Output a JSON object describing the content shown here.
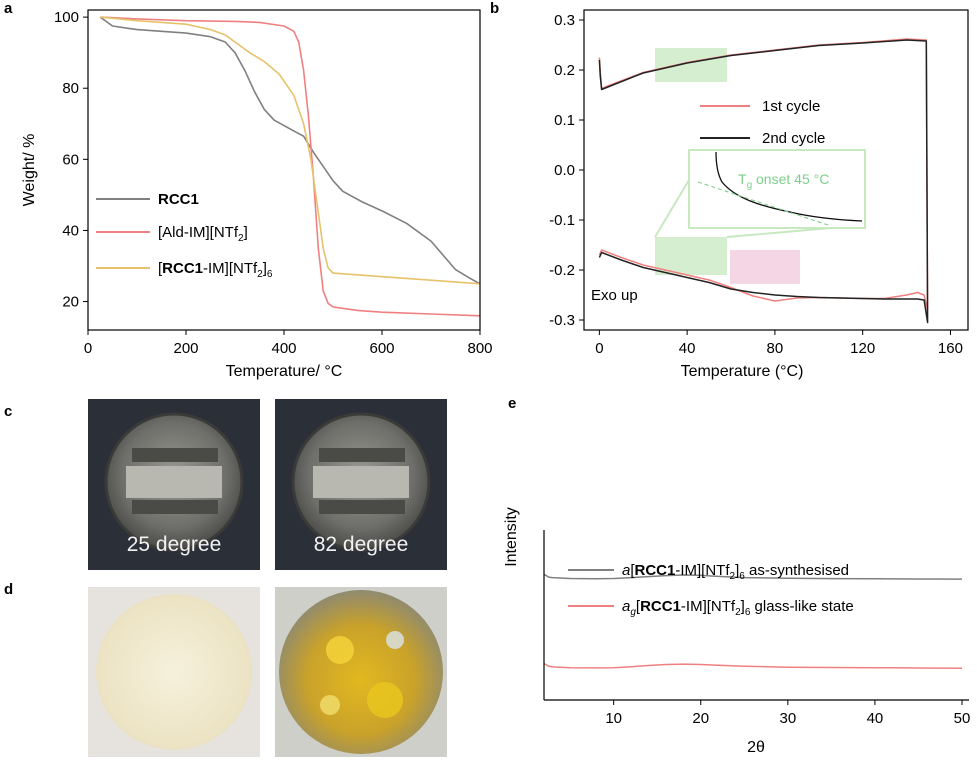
{
  "figure": {
    "panel_labels": [
      "a",
      "b",
      "c",
      "d",
      "e"
    ]
  },
  "chart_data": [
    {
      "panel": "a",
      "type": "line",
      "xlabel": "Temperature/ °C",
      "ylabel": "Weight/ %",
      "xlim": [
        0,
        800
      ],
      "ylim": [
        12,
        102
      ],
      "xticks": [
        0,
        200,
        400,
        600,
        800
      ],
      "yticks": [
        20,
        40,
        60,
        80,
        100
      ],
      "grid": false,
      "legend_position": "bottom-left",
      "series": [
        {
          "name": "RCC1",
          "legend_parts": [
            {
              "t": "RCC1",
              "bold": true
            }
          ],
          "color": "#808080",
          "x": [
            25,
            50,
            100,
            150,
            200,
            250,
            280,
            300,
            320,
            340,
            360,
            380,
            400,
            420,
            440,
            460,
            480,
            500,
            520,
            540,
            560,
            600,
            650,
            700,
            750,
            780,
            800
          ],
          "y": [
            100,
            97.5,
            96.5,
            96,
            95.5,
            94.5,
            93,
            90,
            85,
            79,
            74,
            71,
            69.5,
            68,
            66.5,
            62,
            58,
            54,
            51,
            49.5,
            48,
            45.5,
            42,
            37,
            29,
            26.5,
            25
          ]
        },
        {
          "name": "[Ald-IM][NTf2]",
          "legend_parts": [
            {
              "t": "[Ald-IM][NTf"
            },
            {
              "t": "2",
              "sub": true
            },
            {
              "t": "]"
            }
          ],
          "color": "#f08080",
          "x": [
            25,
            100,
            200,
            300,
            350,
            400,
            420,
            430,
            440,
            450,
            460,
            470,
            480,
            490,
            500,
            550,
            600,
            700,
            800
          ],
          "y": [
            100,
            99.5,
            99,
            98.8,
            98.5,
            97.5,
            96,
            93,
            85,
            72,
            55,
            35,
            23,
            19.5,
            18.5,
            17.5,
            17,
            16.5,
            16
          ]
        },
        {
          "name": "[RCC1-IM][NTf2]6",
          "legend_parts": [
            {
              "t": "["
            },
            {
              "t": "RCC1",
              "bold": true
            },
            {
              "t": "-IM][NTf"
            },
            {
              "t": "2",
              "sub": true
            },
            {
              "t": "]"
            },
            {
              "t": "6",
              "sub": true
            }
          ],
          "color": "#e6c36b",
          "x": [
            25,
            100,
            200,
            250,
            280,
            300,
            330,
            360,
            390,
            420,
            440,
            455,
            470,
            480,
            490,
            500,
            600,
            700,
            800
          ],
          "y": [
            100,
            99,
            98,
            96.5,
            95,
            93,
            90,
            87.5,
            84,
            78,
            70,
            60,
            45,
            35,
            29.5,
            28,
            27,
            26,
            25
          ]
        }
      ]
    },
    {
      "panel": "b",
      "type": "line",
      "xlabel": "Temperature (°C)",
      "xlim": [
        -7,
        168
      ],
      "ylim": [
        -0.32,
        0.32
      ],
      "xticks": [
        0,
        40,
        80,
        120,
        160
      ],
      "yticks": [
        -0.3,
        -0.2,
        -0.1,
        0.0,
        0.1,
        0.2,
        0.3
      ],
      "ytick_labels": [
        "-0.3",
        "-0.2",
        "-0.1",
        "0.0",
        "0.1",
        "0.2",
        "0.3"
      ],
      "grid": false,
      "legend_position": "center",
      "annotations": {
        "corner_text": "Exo up",
        "inset_label_parts": [
          {
            "t": "T"
          },
          {
            "t": "g",
            "sub": true
          },
          {
            "t": " onset 45 °C"
          }
        ]
      },
      "series": [
        {
          "name": "1st cycle",
          "color": "#f08080",
          "x": [
            0,
            1,
            10,
            20,
            30,
            40,
            50,
            60,
            70,
            80,
            90,
            100,
            110,
            120,
            130,
            140,
            145,
            148,
            149.6,
            149,
            140,
            120,
            100,
            80,
            60,
            40,
            20,
            5,
            1,
            0.4,
            0
          ],
          "y": [
            -0.17,
            -0.16,
            -0.175,
            -0.19,
            -0.2,
            -0.21,
            -0.22,
            -0.235,
            -0.252,
            -0.262,
            -0.256,
            -0.255,
            -0.256,
            -0.257,
            -0.257,
            -0.25,
            -0.245,
            -0.25,
            -0.28,
            0.26,
            0.262,
            0.255,
            0.25,
            0.24,
            0.23,
            0.215,
            0.195,
            0.17,
            0.163,
            0.2,
            0.225
          ]
        },
        {
          "name": "2nd cycle",
          "color": "#222222",
          "x": [
            0,
            1,
            10,
            20,
            30,
            40,
            50,
            60,
            70,
            80,
            90,
            100,
            110,
            120,
            130,
            140,
            145,
            148,
            149.6,
            149,
            140,
            120,
            100,
            80,
            60,
            40,
            20,
            5,
            1,
            0.4,
            0
          ],
          "y": [
            -0.175,
            -0.165,
            -0.18,
            -0.195,
            -0.205,
            -0.215,
            -0.225,
            -0.238,
            -0.245,
            -0.25,
            -0.253,
            -0.255,
            -0.256,
            -0.257,
            -0.258,
            -0.258,
            -0.258,
            -0.26,
            -0.305,
            0.258,
            0.26,
            0.254,
            0.249,
            0.239,
            0.229,
            0.214,
            0.194,
            0.168,
            0.161,
            0.19,
            0.22
          ]
        }
      ]
    },
    {
      "panel": "e",
      "type": "line",
      "xlabel": "2θ",
      "ylabel": "Intensity",
      "xlim": [
        2,
        50
      ],
      "ylim": [
        0,
        1
      ],
      "xticks": [
        10,
        20,
        30,
        40,
        50
      ],
      "yticks": [],
      "grid": false,
      "legend_position": "top-right",
      "series": [
        {
          "name": "a[RCC1-IM][NTf2]6 as-synthesised",
          "legend_parts": [
            {
              "t": "a",
              "italic": true
            },
            {
              "t": "["
            },
            {
              "t": "RCC1",
              "bold": true
            },
            {
              "t": "-IM][NTf"
            },
            {
              "t": "2",
              "sub": true
            },
            {
              "t": "]"
            },
            {
              "t": "6",
              "sub": true
            },
            {
              "t": " as-synthesised"
            }
          ],
          "color": "#808080",
          "x": [
            2,
            2.3,
            2.6,
            3,
            5,
            8,
            10,
            12,
            14,
            16,
            18,
            20,
            22,
            25,
            30,
            35,
            40,
            45,
            50
          ],
          "y": [
            0.74,
            0.73,
            0.722,
            0.72,
            0.715,
            0.713,
            0.715,
            0.72,
            0.726,
            0.732,
            0.735,
            0.733,
            0.727,
            0.72,
            0.716,
            0.714,
            0.713,
            0.712,
            0.711
          ]
        },
        {
          "name": "ag[RCC1-IM][NTf2]6 glass-like state",
          "legend_parts": [
            {
              "t": "a",
              "italic": true
            },
            {
              "t": "g",
              "italic": true,
              "sub": true
            },
            {
              "t": "["
            },
            {
              "t": "RCC1",
              "bold": true
            },
            {
              "t": "-IM][NTf"
            },
            {
              "t": "2",
              "sub": true
            },
            {
              "t": "]"
            },
            {
              "t": "6",
              "sub": true
            },
            {
              "t": " glass-like state"
            }
          ],
          "color": "#f08080",
          "x": [
            2,
            2.3,
            2.6,
            3,
            5,
            8,
            10,
            12,
            14,
            16,
            18,
            20,
            22,
            25,
            30,
            35,
            40,
            45,
            50
          ],
          "y": [
            0.215,
            0.205,
            0.198,
            0.195,
            0.19,
            0.189,
            0.19,
            0.196,
            0.203,
            0.209,
            0.211,
            0.209,
            0.204,
            0.198,
            0.193,
            0.191,
            0.19,
            0.188,
            0.187
          ]
        }
      ]
    }
  ],
  "photos": {
    "c_left_caption": "25 degree",
    "c_right_caption": "82 degree"
  },
  "colors": {
    "highlight_green": "#c8e8c0",
    "highlight_pink": "#f0c8dc",
    "inset_label": "#7ecf8a"
  }
}
